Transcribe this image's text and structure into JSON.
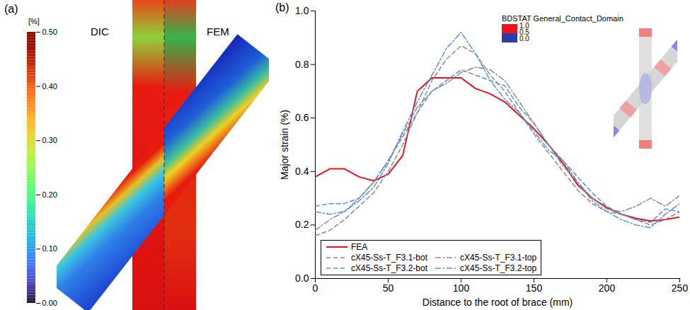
{
  "chart_data": [
    {
      "type": "contour_map",
      "panel": "(a)",
      "labels": [
        "DIC",
        "FEM"
      ],
      "colorbar": {
        "label": "[%]",
        "range": [
          0,
          0.5
        ],
        "ticks": [
          {
            "value": 0,
            "label": "0.00"
          },
          {
            "value": 0.1,
            "label": "0.10"
          },
          {
            "value": 0.2,
            "label": "0.20"
          },
          {
            "value": 0.3,
            "label": "0.30"
          },
          {
            "value": 0.4,
            "label": "0.40"
          },
          {
            "value": 0.5,
            "label": "0.50"
          }
        ]
      }
    },
    {
      "type": "line",
      "panel": "(b)",
      "x_label": "Distance to the root of brace (mm)",
      "y_label": "Major strain (%)",
      "x": [
        0,
        10,
        20,
        30,
        40,
        50,
        60,
        70,
        80,
        90,
        100,
        110,
        120,
        130,
        140,
        150,
        160,
        170,
        180,
        190,
        200,
        210,
        220,
        230,
        240,
        250
      ],
      "xlim": [
        0,
        250
      ],
      "xticks": [
        0,
        50,
        100,
        150,
        200,
        250
      ],
      "ylim": [
        0,
        1
      ],
      "yticks": [
        {
          "value": 0,
          "label": "0.0"
        },
        {
          "value": 0.2,
          "label": "0.2"
        },
        {
          "value": 0.4,
          "label": "0.4"
        },
        {
          "value": 0.6,
          "label": "0.6"
        },
        {
          "value": 0.8,
          "label": "0.8"
        },
        {
          "value": 1,
          "label": "1.0"
        }
      ],
      "legend": "bottom",
      "series": [
        {
          "name": "FEA",
          "color": "#e8121e",
          "line_style": "solid",
          "values": [
            0.38,
            0.41,
            0.41,
            0.38,
            0.365,
            0.39,
            0.46,
            0.7,
            0.75,
            0.75,
            0.75,
            0.71,
            0.69,
            0.66,
            0.61,
            0.56,
            0.5,
            0.43,
            0.35,
            0.3,
            0.265,
            0.24,
            0.225,
            0.215,
            0.22,
            0.23
          ]
        },
        {
          "name": "cX45-Ss-T_F3.1-bot",
          "color": "#8c8c8c",
          "line_style": "dashed",
          "values": [
            0.16,
            0.18,
            0.22,
            0.27,
            0.32,
            0.4,
            0.5,
            0.62,
            0.74,
            0.82,
            0.87,
            0.84,
            0.76,
            0.7,
            0.62,
            0.54,
            0.47,
            0.4,
            0.33,
            0.28,
            0.25,
            0.24,
            0.22,
            0.2,
            0.22,
            0.25
          ]
        },
        {
          "name": "cX45-Ss-T_F3.1-top",
          "color": "#8c8c8c",
          "line_style": "dashdot",
          "values": [
            0.18,
            0.22,
            0.25,
            0.3,
            0.36,
            0.44,
            0.54,
            0.64,
            0.7,
            0.73,
            0.77,
            0.79,
            0.78,
            0.74,
            0.66,
            0.58,
            0.5,
            0.42,
            0.36,
            0.3,
            0.26,
            0.25,
            0.27,
            0.3,
            0.27,
            0.31
          ]
        },
        {
          "name": "cX45-Ss-T_F3.2-bot",
          "color": "#5b8fd6",
          "line_style": "dashed",
          "values": [
            0.27,
            0.28,
            0.28,
            0.3,
            0.36,
            0.44,
            0.53,
            0.62,
            0.7,
            0.74,
            0.78,
            0.76,
            0.74,
            0.72,
            0.64,
            0.58,
            0.5,
            0.44,
            0.38,
            0.32,
            0.27,
            0.24,
            0.22,
            0.21,
            0.26,
            0.25
          ]
        },
        {
          "name": "cX45-Ss-T_F3.2-top",
          "color": "#5b8fd6",
          "line_style": "dashdot",
          "values": [
            0.25,
            0.24,
            0.25,
            0.29,
            0.34,
            0.43,
            0.55,
            0.66,
            0.76,
            0.86,
            0.92,
            0.84,
            0.74,
            0.67,
            0.62,
            0.55,
            0.48,
            0.44,
            0.36,
            0.29,
            0.25,
            0.22,
            0.2,
            0.19,
            0.24,
            0.28
          ]
        }
      ],
      "inset": {
        "title": "BDSTAT General_Contact_Domain",
        "ticks": [
          {
            "value": 1,
            "label": "1.0"
          },
          {
            "value": 0.5,
            "label": "0.5"
          },
          {
            "value": 0,
            "label": "0.0"
          }
        ],
        "colors": [
          "#e8141e",
          "#2e3ca8"
        ]
      }
    }
  ]
}
